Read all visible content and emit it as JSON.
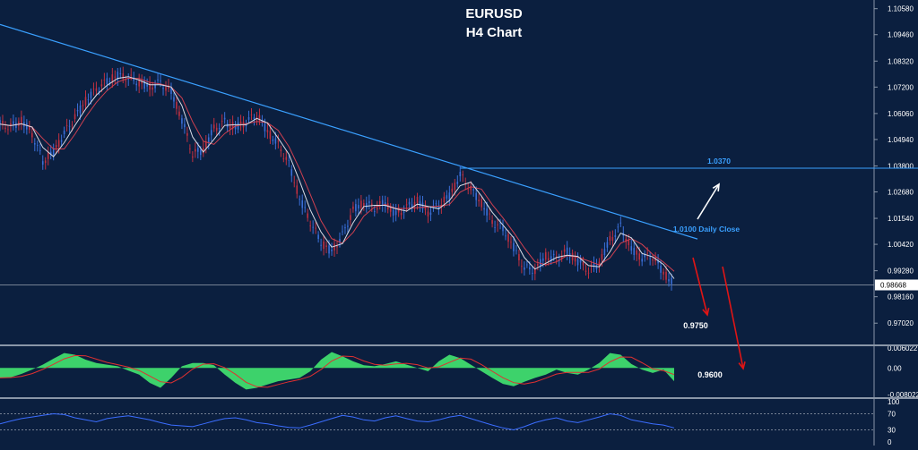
{
  "chart_data": {
    "type": "line",
    "title": "EURUSD",
    "subtitle": "H4 Chart",
    "instrument": "EURUSD",
    "timeframe": "H4",
    "price_axis": {
      "ticks": [
        "1.10580",
        "1.09460",
        "1.08320",
        "1.07200",
        "1.06060",
        "1.04940",
        "1.03800",
        "1.02680",
        "1.01540",
        "1.00420",
        "0.99280",
        "0.98160",
        "0.97020"
      ],
      "current_price": "0.98668",
      "ylim": [
        0.9645,
        1.108
      ]
    },
    "price_series": [
      1.056,
      1.0548,
      1.0575,
      1.052,
      1.04,
      1.044,
      1.052,
      1.059,
      1.066,
      1.071,
      1.0745,
      1.077,
      1.076,
      1.074,
      1.072,
      1.074,
      1.07,
      1.058,
      1.043,
      1.045,
      1.054,
      1.057,
      1.0545,
      1.057,
      1.06,
      1.053,
      1.047,
      1.039,
      1.024,
      1.014,
      1.005,
      1.001,
      1.008,
      1.019,
      1.022,
      1.02,
      1.022,
      1.017,
      1.02,
      1.023,
      1.018,
      1.021,
      1.025,
      1.034,
      1.028,
      1.022,
      1.014,
      1.011,
      1.003,
      0.994,
      0.993,
      0.999,
      0.998,
      1.001,
      0.997,
      0.993,
      0.996,
      1.006,
      1.012,
      1.002,
      0.9985,
      0.999,
      0.992,
      0.9868
    ],
    "trendline": {
      "price_start": 1.099,
      "price_end": 1.0065
    },
    "levels": [
      {
        "label": "1.0370",
        "price": 1.037
      },
      {
        "label": "0.98668",
        "price": 0.98668
      }
    ],
    "annotations": [
      {
        "text": "1.0370",
        "color": "#3aa0ff"
      },
      {
        "text": "1.0100 Daily Close",
        "color": "#3aa0ff"
      },
      {
        "text": "0.9750",
        "color": "#ffffff"
      },
      {
        "text": "0.9600",
        "color": "#ffffff"
      }
    ],
    "macd": {
      "ticks": [
        "0.006022",
        "0.00",
        "-0.008022"
      ],
      "ylim": [
        -0.008022,
        0.006022
      ],
      "values": [
        -0.003,
        -0.0028,
        -0.0018,
        -0.0005,
        0.001,
        0.0028,
        0.0045,
        0.004,
        0.0025,
        0.0015,
        0.001,
        0.0005,
        -0.0008,
        -0.002,
        -0.0045,
        -0.006,
        -0.003,
        0.0005,
        0.0015,
        0.0015,
        0.0008,
        -0.002,
        -0.0045,
        -0.0065,
        -0.006,
        -0.005,
        -0.004,
        -0.0035,
        -0.003,
        -0.001,
        0.0025,
        0.0048,
        0.0035,
        0.002,
        0.0008,
        0.0005,
        0.0012,
        0.002,
        0.001,
        0.0,
        -0.001,
        0.002,
        0.004,
        0.003,
        0.001,
        -0.001,
        -0.003,
        -0.0048,
        -0.0055,
        -0.0042,
        -0.003,
        -0.002,
        -0.0005,
        -0.0015,
        -0.002,
        -0.0005,
        0.0015,
        0.0045,
        0.004,
        0.0012,
        -0.0005,
        -0.0015,
        -0.0005,
        -0.004
      ]
    },
    "rsi": {
      "ticks": [
        "100",
        "70",
        "30",
        "0"
      ],
      "levels": [
        70,
        30
      ],
      "ylim": [
        0,
        100
      ],
      "values": [
        45,
        52,
        58,
        62,
        66,
        70,
        68,
        60,
        55,
        50,
        58,
        62,
        65,
        60,
        55,
        48,
        42,
        40,
        38,
        45,
        52,
        58,
        60,
        55,
        48,
        45,
        40,
        36,
        35,
        42,
        50,
        58,
        66,
        62,
        55,
        52,
        60,
        65,
        58,
        52,
        50,
        55,
        62,
        66,
        58,
        50,
        42,
        35,
        30,
        38,
        48,
        55,
        60,
        52,
        48,
        55,
        62,
        70,
        66,
        55,
        50,
        45,
        42,
        35
      ]
    }
  },
  "colors": {
    "background": "#0b1f3f",
    "separator": "#8a96a8",
    "trendline": "#3aa0ff",
    "level_line": "#3aa0ff",
    "price_line": "#d8dde6",
    "arrow_red": "#e01515",
    "arrow_white": "#ffffff",
    "macd_fill": "#3dd26b",
    "macd_signal": "#e03030",
    "rsi_line": "#3b6dff",
    "rsi_level": "#9aa3b0"
  }
}
